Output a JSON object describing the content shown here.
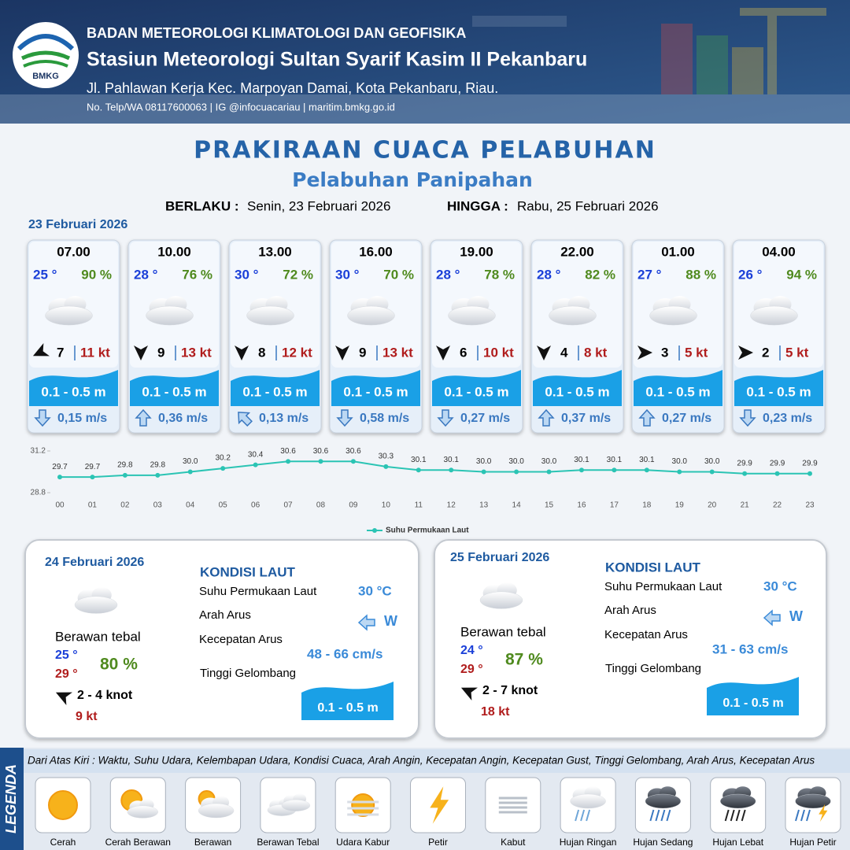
{
  "header": {
    "logo_text": "BMKG",
    "organization": "BADAN METEOROLOGI KLIMATOLOGI DAN GEOFISIKA",
    "station": "Stasiun Meteorologi Sultan Syarif Kasim II Pekanbaru",
    "address": "Jl. Pahlawan Kerja Kec. Marpoyan Damai, Kota Pekanbaru, Riau.",
    "contact": "No. Telp/WA 08117600063 | IG @infocuacariau | maritim.bmkg.go.id"
  },
  "title": "PRAKIRAAN CUACA PELABUHAN",
  "subtitle": "Pelabuhan Panipahan",
  "validity": {
    "from_label": "BERLAKU :",
    "from": "Senin, 23 Februari 2026",
    "to_label": "HINGGA :",
    "to": "Rabu, 25 Februari 2026"
  },
  "day1_date": "23 Februari 2026",
  "forecasts": [
    {
      "time": "07.00",
      "temp": "25 °",
      "humidity": "90 %",
      "wind": "7",
      "gust": "11 kt",
      "wave": "0.1 - 0.5 m",
      "current": "0,15 m/s"
    },
    {
      "time": "10.00",
      "temp": "28 °",
      "humidity": "76 %",
      "wind": "9",
      "gust": "13 kt",
      "wave": "0.1 - 0.5 m",
      "current": "0,36 m/s"
    },
    {
      "time": "13.00",
      "temp": "30 °",
      "humidity": "72 %",
      "wind": "8",
      "gust": "12 kt",
      "wave": "0.1 - 0.5 m",
      "current": "0,13 m/s"
    },
    {
      "time": "16.00",
      "temp": "30 °",
      "humidity": "70 %",
      "wind": "9",
      "gust": "13 kt",
      "wave": "0.1 - 0.5 m",
      "current": "0,58 m/s"
    },
    {
      "time": "19.00",
      "temp": "28 °",
      "humidity": "78 %",
      "wind": "6",
      "gust": "10 kt",
      "wave": "0.1 - 0.5 m",
      "current": "0,27 m/s"
    },
    {
      "time": "22.00",
      "temp": "28 °",
      "humidity": "82 %",
      "wind": "4",
      "gust": "8 kt",
      "wave": "0.1 - 0.5 m",
      "current": "0,37 m/s"
    },
    {
      "time": "01.00",
      "temp": "27 °",
      "humidity": "88 %",
      "wind": "3",
      "gust": "5 kt",
      "wave": "0.1 - 0.5 m",
      "current": "0,27 m/s"
    },
    {
      "time": "04.00",
      "temp": "26 °",
      "humidity": "94 %",
      "wind": "2",
      "gust": "5 kt",
      "wave": "0.1 - 0.5 m",
      "current": "0,23 m/s"
    }
  ],
  "sst_chart": {
    "type": "line",
    "categories": [
      "00",
      "01",
      "02",
      "03",
      "04",
      "05",
      "06",
      "07",
      "08",
      "09",
      "10",
      "11",
      "12",
      "13",
      "14",
      "15",
      "16",
      "17",
      "18",
      "19",
      "20",
      "21",
      "22",
      "23"
    ],
    "series": [
      {
        "name": "Suhu Permukaan Laut",
        "color": "#2bc4b4",
        "values": [
          29.7,
          29.7,
          29.8,
          29.8,
          30.0,
          30.2,
          30.4,
          30.6,
          30.6,
          30.6,
          30.3,
          30.1,
          30.1,
          30.0,
          30.0,
          30.0,
          30.1,
          30.1,
          30.1,
          30.0,
          30.0,
          29.9,
          29.9,
          29.9
        ],
        "value_labels": [
          "29.7",
          "29.7",
          "29.8",
          "29.8",
          "30.0",
          "30.2",
          "30.4",
          "30.6",
          "30.6",
          "30.6",
          "30.3",
          "30.1",
          "30.1",
          "30.0",
          "30.0",
          "30.0",
          "30.1",
          "30.1",
          "30.1",
          "30.0",
          "30.0",
          "29.9",
          "29.9",
          "29.9"
        ]
      }
    ],
    "ylim": [
      28.8,
      31.2
    ],
    "yticks": [
      28.8,
      31.2
    ]
  },
  "days": [
    {
      "date": "24 Februari 2026",
      "weather": "Berawan tebal",
      "temp_min": "25 °",
      "temp_max": "29 °",
      "humidity": "80 %",
      "wind": "2  - 4 knot",
      "gust": "9 kt",
      "kondisi_title": "KONDISI LAUT",
      "sst_label": "Suhu Permukaan Laut",
      "sst": "30 °C",
      "current_dir_label": "Arah Arus",
      "current_dir": "W",
      "current_speed_label": "Kecepatan Arus",
      "current_speed": "48  - 66 cm/s",
      "wave_label": "Tinggi Gelombang",
      "wave": "0.1 - 0.5 m"
    },
    {
      "date": "25 Februari 2026",
      "weather": "Berawan tebal",
      "temp_min": "24 °",
      "temp_max": "29 °",
      "humidity": "87 %",
      "wind": "2  - 7 knot",
      "gust": "18 kt",
      "kondisi_title": "KONDISI LAUT",
      "sst_label": "Suhu Permukaan Laut",
      "sst": "30 °C",
      "current_dir_label": "Arah Arus",
      "current_dir": "W",
      "current_speed_label": "Kecepatan Arus",
      "current_speed": "31  - 63 cm/s",
      "wave_label": "Tinggi Gelombang",
      "wave": "0.1 - 0.5 m"
    }
  ],
  "legend": {
    "title": "LEGENDA",
    "description": "Dari Atas Kiri : Waktu, Suhu Udara, Kelembapan Udara, Kondisi Cuaca, Arah Angin, Kecepatan Angin, Kecepatan Gust, Tinggi Gelombang, Arah Arus, Kecepatan Arus",
    "items": [
      "Cerah",
      "Cerah Berawan",
      "Berawan",
      "Berawan Tebal",
      "Udara Kabur",
      "Petir",
      "Kabut",
      "Hujan Ringan",
      "Hujan Sedang",
      "Hujan Lebat",
      "Hujan Petir"
    ]
  }
}
